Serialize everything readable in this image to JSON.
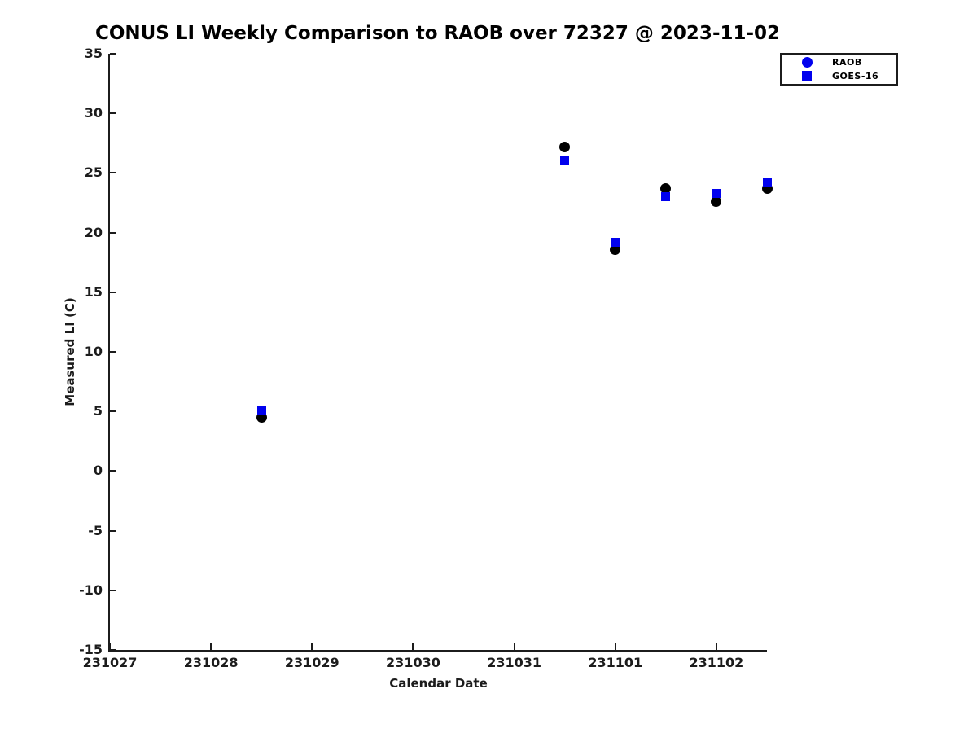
{
  "title": "CONUS LI Weekly Comparison to RAOB over 72327 @ 2023-11-02",
  "axis_titles": {
    "x": "Calendar Date",
    "y": "Measured LI (C)"
  },
  "colors": {
    "marker_blue": "#0101ee",
    "marker_black": "#000000",
    "axis": "#1c1c1c",
    "background": "#ffffff"
  },
  "legend": {
    "items": [
      {
        "label": "RAOB",
        "marker": "circle",
        "color": "#0101ee"
      },
      {
        "label": "GOES-16",
        "marker": "square",
        "color": "#0101ee"
      }
    ]
  },
  "chart_data": {
    "type": "scatter",
    "title": "CONUS LI Weekly Comparison to RAOB over 72327 @ 2023-11-02",
    "xlabel": "Calendar Date",
    "ylabel": "Measured LI (C)",
    "x_categories": [
      "231027",
      "231028",
      "231029",
      "231030",
      "231031",
      "231101",
      "231102"
    ],
    "xlim": [
      231027,
      231102.5
    ],
    "ylim": [
      -15,
      35
    ],
    "ytick_step": 5,
    "grid": false,
    "legend_position": "top-right",
    "series": [
      {
        "name": "RAOB",
        "marker": "circle",
        "marker_size": 13,
        "data_color": "#000000",
        "legend_color": "#0101ee",
        "points": [
          {
            "x": 231028.5,
            "y": 4.5
          },
          {
            "x": 231031.5,
            "y": 27.2
          },
          {
            "x": 231101,
            "y": 18.6
          },
          {
            "x": 231101.5,
            "y": 23.7
          },
          {
            "x": 231102,
            "y": 22.6
          },
          {
            "x": 231102.5,
            "y": 23.7
          }
        ]
      },
      {
        "name": "GOES-16",
        "marker": "square",
        "marker_size": 11,
        "data_color": "#0101ee",
        "legend_color": "#0101ee",
        "points": [
          {
            "x": 231028.5,
            "y": 5.1
          },
          {
            "x": 231031.5,
            "y": 26.1
          },
          {
            "x": 231101,
            "y": 19.2
          },
          {
            "x": 231101.5,
            "y": 23.0
          },
          {
            "x": 231102,
            "y": 23.3
          },
          {
            "x": 231102.5,
            "y": 24.2
          }
        ]
      }
    ]
  }
}
